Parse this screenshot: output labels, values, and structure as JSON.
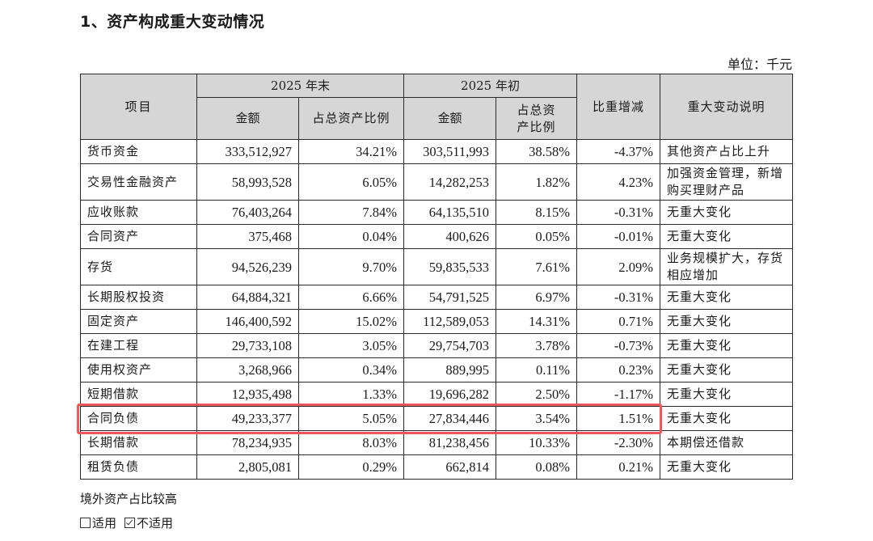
{
  "title": "1、资产构成重大变动情况",
  "unit": "单位：千元",
  "table": {
    "headers": {
      "item": "项目",
      "end_group": "2025 年末",
      "begin_group": "2025 年初",
      "end_amount": "金额",
      "end_ratio": "占总资产比例",
      "begin_amount": "金额",
      "begin_ratio": "占总资产比例",
      "change": "比重增减",
      "explanation": "重大变动说明"
    },
    "rows": [
      {
        "name": "货币资金",
        "end_amount": "333,512,927",
        "end_ratio": "34.21%",
        "begin_amount": "303,511,993",
        "begin_ratio": "38.58%",
        "change": "-4.37%",
        "explanation": "其他资产占比上升"
      },
      {
        "name": "交易性金融资产",
        "end_amount": "58,993,528",
        "end_ratio": "6.05%",
        "begin_amount": "14,282,253",
        "begin_ratio": "1.82%",
        "change": "4.23%",
        "explanation": "加强资金管理，新增购买理财产品"
      },
      {
        "name": "应收账款",
        "end_amount": "76,403,264",
        "end_ratio": "7.84%",
        "begin_amount": "64,135,510",
        "begin_ratio": "8.15%",
        "change": "-0.31%",
        "explanation": "无重大变化"
      },
      {
        "name": "合同资产",
        "end_amount": "375,468",
        "end_ratio": "0.04%",
        "begin_amount": "400,626",
        "begin_ratio": "0.05%",
        "change": "-0.01%",
        "explanation": "无重大变化"
      },
      {
        "name": "存货",
        "end_amount": "94,526,239",
        "end_ratio": "9.70%",
        "begin_amount": "59,835,533",
        "begin_ratio": "7.61%",
        "change": "2.09%",
        "explanation": "业务规模扩大，存货相应增加"
      },
      {
        "name": "长期股权投资",
        "end_amount": "64,884,321",
        "end_ratio": "6.66%",
        "begin_amount": "54,791,525",
        "begin_ratio": "6.97%",
        "change": "-0.31%",
        "explanation": "无重大变化"
      },
      {
        "name": "固定资产",
        "end_amount": "146,400,592",
        "end_ratio": "15.02%",
        "begin_amount": "112,589,053",
        "begin_ratio": "14.31%",
        "change": "0.71%",
        "explanation": "无重大变化"
      },
      {
        "name": "在建工程",
        "end_amount": "29,733,108",
        "end_ratio": "3.05%",
        "begin_amount": "29,754,703",
        "begin_ratio": "3.78%",
        "change": "-0.73%",
        "explanation": "无重大变化"
      },
      {
        "name": "使用权资产",
        "end_amount": "3,268,966",
        "end_ratio": "0.34%",
        "begin_amount": "889,995",
        "begin_ratio": "0.11%",
        "change": "0.23%",
        "explanation": "无重大变化"
      },
      {
        "name": "短期借款",
        "end_amount": "12,935,498",
        "end_ratio": "1.33%",
        "begin_amount": "19,696,282",
        "begin_ratio": "2.50%",
        "change": "-1.17%",
        "explanation": "无重大变化"
      },
      {
        "name": "合同负债",
        "end_amount": "49,233,377",
        "end_ratio": "5.05%",
        "begin_amount": "27,834,446",
        "begin_ratio": "3.54%",
        "change": "1.51%",
        "explanation": "无重大变化"
      },
      {
        "name": "长期借款",
        "end_amount": "78,234,935",
        "end_ratio": "8.03%",
        "begin_amount": "81,238,456",
        "begin_ratio": "10.33%",
        "change": "-2.30%",
        "explanation": "本期偿还借款"
      },
      {
        "name": "租赁负债",
        "end_amount": "2,805,081",
        "end_ratio": "0.29%",
        "begin_amount": "662,814",
        "begin_ratio": "0.08%",
        "change": "0.21%",
        "explanation": "无重大变化"
      }
    ]
  },
  "highlight": {
    "row": "合同负债",
    "color": "#f0575a"
  },
  "note": "境外资产占比较高",
  "applicability": {
    "option_applicable": "适用",
    "option_not_applicable": "不适用",
    "applicable_checked": false,
    "not_applicable_checked": true
  }
}
